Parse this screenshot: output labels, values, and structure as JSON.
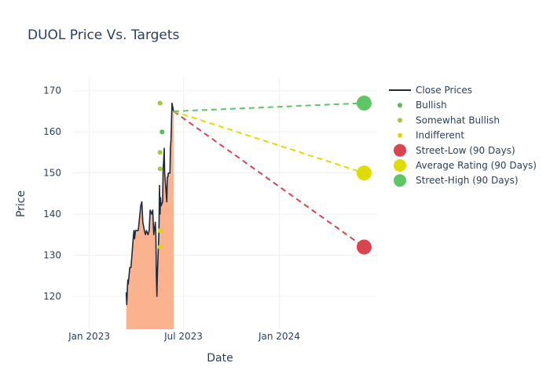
{
  "chart_data": {
    "type": "line",
    "title": "DUOL Price Vs. Targets",
    "xlabel": "Date",
    "ylabel": "Price",
    "x_ticks": [
      {
        "label": "Jan 2023",
        "date": "2023-01-01"
      },
      {
        "label": "Jul 2023",
        "date": "2023-07-01"
      },
      {
        "label": "Jan 2024",
        "date": "2024-01-01"
      }
    ],
    "y_ticks": [
      120,
      130,
      140,
      150,
      160,
      170
    ],
    "xlim": [
      "2022-12-01",
      "2024-07-07"
    ],
    "ylim": [
      112,
      173
    ],
    "grid": true,
    "legend_position": "right",
    "close_prices": {
      "name": "Close Prices",
      "color": "#1f2a3c",
      "fill_color": "#fbb28f",
      "points": [
        [
          "2023-03-13",
          121
        ],
        [
          "2023-03-14",
          118
        ],
        [
          "2023-03-16",
          124
        ],
        [
          "2023-03-17",
          123
        ],
        [
          "2023-03-20",
          127
        ],
        [
          "2023-03-22",
          127
        ],
        [
          "2023-03-24",
          130
        ],
        [
          "2023-03-27",
          135
        ],
        [
          "2023-03-28",
          136
        ],
        [
          "2023-03-29",
          134
        ],
        [
          "2023-03-31",
          136
        ],
        [
          "2023-04-03",
          136
        ],
        [
          "2023-04-05",
          136
        ],
        [
          "2023-04-06",
          137
        ],
        [
          "2023-04-10",
          142
        ],
        [
          "2023-04-12",
          143
        ],
        [
          "2023-04-14",
          138
        ],
        [
          "2023-04-17",
          136
        ],
        [
          "2023-04-19",
          135
        ],
        [
          "2023-04-21",
          136
        ],
        [
          "2023-04-24",
          135
        ],
        [
          "2023-04-26",
          136
        ],
        [
          "2023-04-28",
          141
        ],
        [
          "2023-05-01",
          140
        ],
        [
          "2023-05-03",
          141
        ],
        [
          "2023-05-05",
          135
        ],
        [
          "2023-05-08",
          138
        ],
        [
          "2023-05-09",
          135
        ],
        [
          "2023-05-10",
          125
        ],
        [
          "2023-05-11",
          120
        ],
        [
          "2023-05-12",
          126
        ],
        [
          "2023-05-15",
          136
        ],
        [
          "2023-05-16",
          147
        ],
        [
          "2023-05-17",
          140
        ],
        [
          "2023-05-18",
          144
        ],
        [
          "2023-05-19",
          142
        ],
        [
          "2023-05-22",
          143
        ],
        [
          "2023-05-23",
          151
        ],
        [
          "2023-05-24",
          153
        ],
        [
          "2023-05-25",
          156
        ],
        [
          "2023-05-26",
          150
        ],
        [
          "2023-05-30",
          143
        ],
        [
          "2023-05-31",
          149
        ],
        [
          "2023-06-01",
          149
        ],
        [
          "2023-06-02",
          150
        ],
        [
          "2023-06-05",
          150
        ],
        [
          "2023-06-06",
          156
        ],
        [
          "2023-06-07",
          158
        ],
        [
          "2023-06-08",
          162
        ],
        [
          "2023-06-09",
          167
        ],
        [
          "2023-06-12",
          165
        ]
      ]
    },
    "rating_series": [
      {
        "name": "Bullish",
        "color": "#5cb85c",
        "points": [
          [
            "2023-05-21",
            160
          ]
        ]
      },
      {
        "name": "Somewhat Bullish",
        "color": "#9acd32",
        "points": [
          [
            "2023-05-17",
            167
          ],
          [
            "2023-05-17",
            155
          ],
          [
            "2023-05-17",
            151
          ]
        ]
      },
      {
        "name": "Indifferent",
        "color": "#e3d500",
        "points": [
          [
            "2023-05-17",
            136
          ],
          [
            "2023-05-17",
            132
          ]
        ]
      }
    ],
    "targets": [
      {
        "name": "Street-Low (90 Days)",
        "color": "#d9444f",
        "value": 132
      },
      {
        "name": "Average Rating (90 Days)",
        "color": "#dfdc00",
        "value": 150
      },
      {
        "name": "Street-High (90 Days)",
        "color": "#5ec662",
        "value": 167
      }
    ],
    "target_start": {
      "date": "2023-06-12",
      "value": 165
    },
    "target_date": "2024-06-12"
  }
}
